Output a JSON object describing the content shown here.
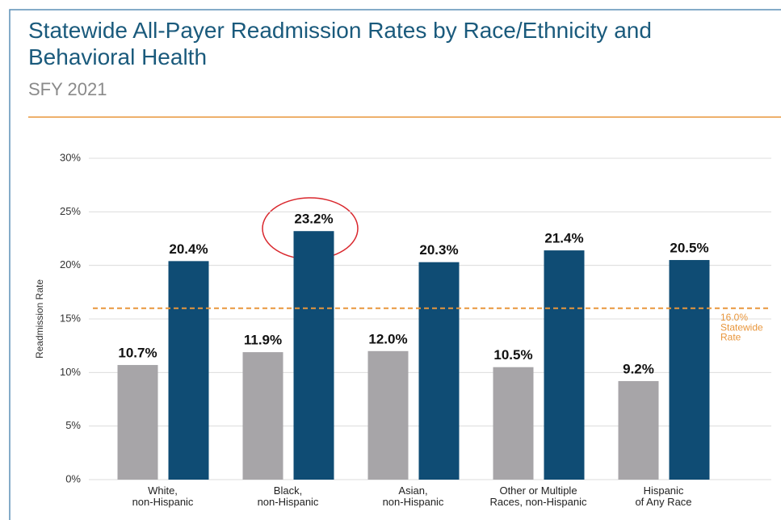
{
  "chart_data": {
    "type": "bar",
    "title": "Statewide All-Payer Readmission Rates by Race/Ethnicity and\nBehavioral Health",
    "subtitle": "SFY 2021",
    "ylabel": "Readmission Rate",
    "categories": [
      "White,\nnon-Hispanic",
      "Black,\nnon-Hispanic",
      "Asian,\nnon-Hispanic",
      "Other or Multiple\nRaces, non-Hispanic",
      "Hispanic\nof Any Race"
    ],
    "series": [
      {
        "color": "#a7a5a8",
        "values": [
          10.7,
          11.9,
          12.0,
          10.5,
          9.2
        ],
        "value_labels": [
          "10.7%",
          "11.9%",
          "12.0%",
          "10.5%",
          "9.2%"
        ]
      },
      {
        "color": "#0f4c74",
        "values": [
          20.4,
          23.2,
          20.3,
          21.4,
          20.5
        ],
        "value_labels": [
          "20.4%",
          "23.2%",
          "20.3%",
          "21.4%",
          "20.5%"
        ]
      }
    ],
    "ylim": [
      0,
      30
    ],
    "yticks": [
      {
        "value": 0,
        "label": "0%"
      },
      {
        "value": 5,
        "label": "5%"
      },
      {
        "value": 10,
        "label": "10%"
      },
      {
        "value": 15,
        "label": "15%"
      },
      {
        "value": 20,
        "label": "20%"
      },
      {
        "value": 25,
        "label": "25%"
      },
      {
        "value": 30,
        "label": "30%"
      }
    ],
    "grid": true,
    "reference": {
      "value": 16,
      "label": "16.0%",
      "text": "Statewide\nRate",
      "color": "#e8963c"
    }
  }
}
